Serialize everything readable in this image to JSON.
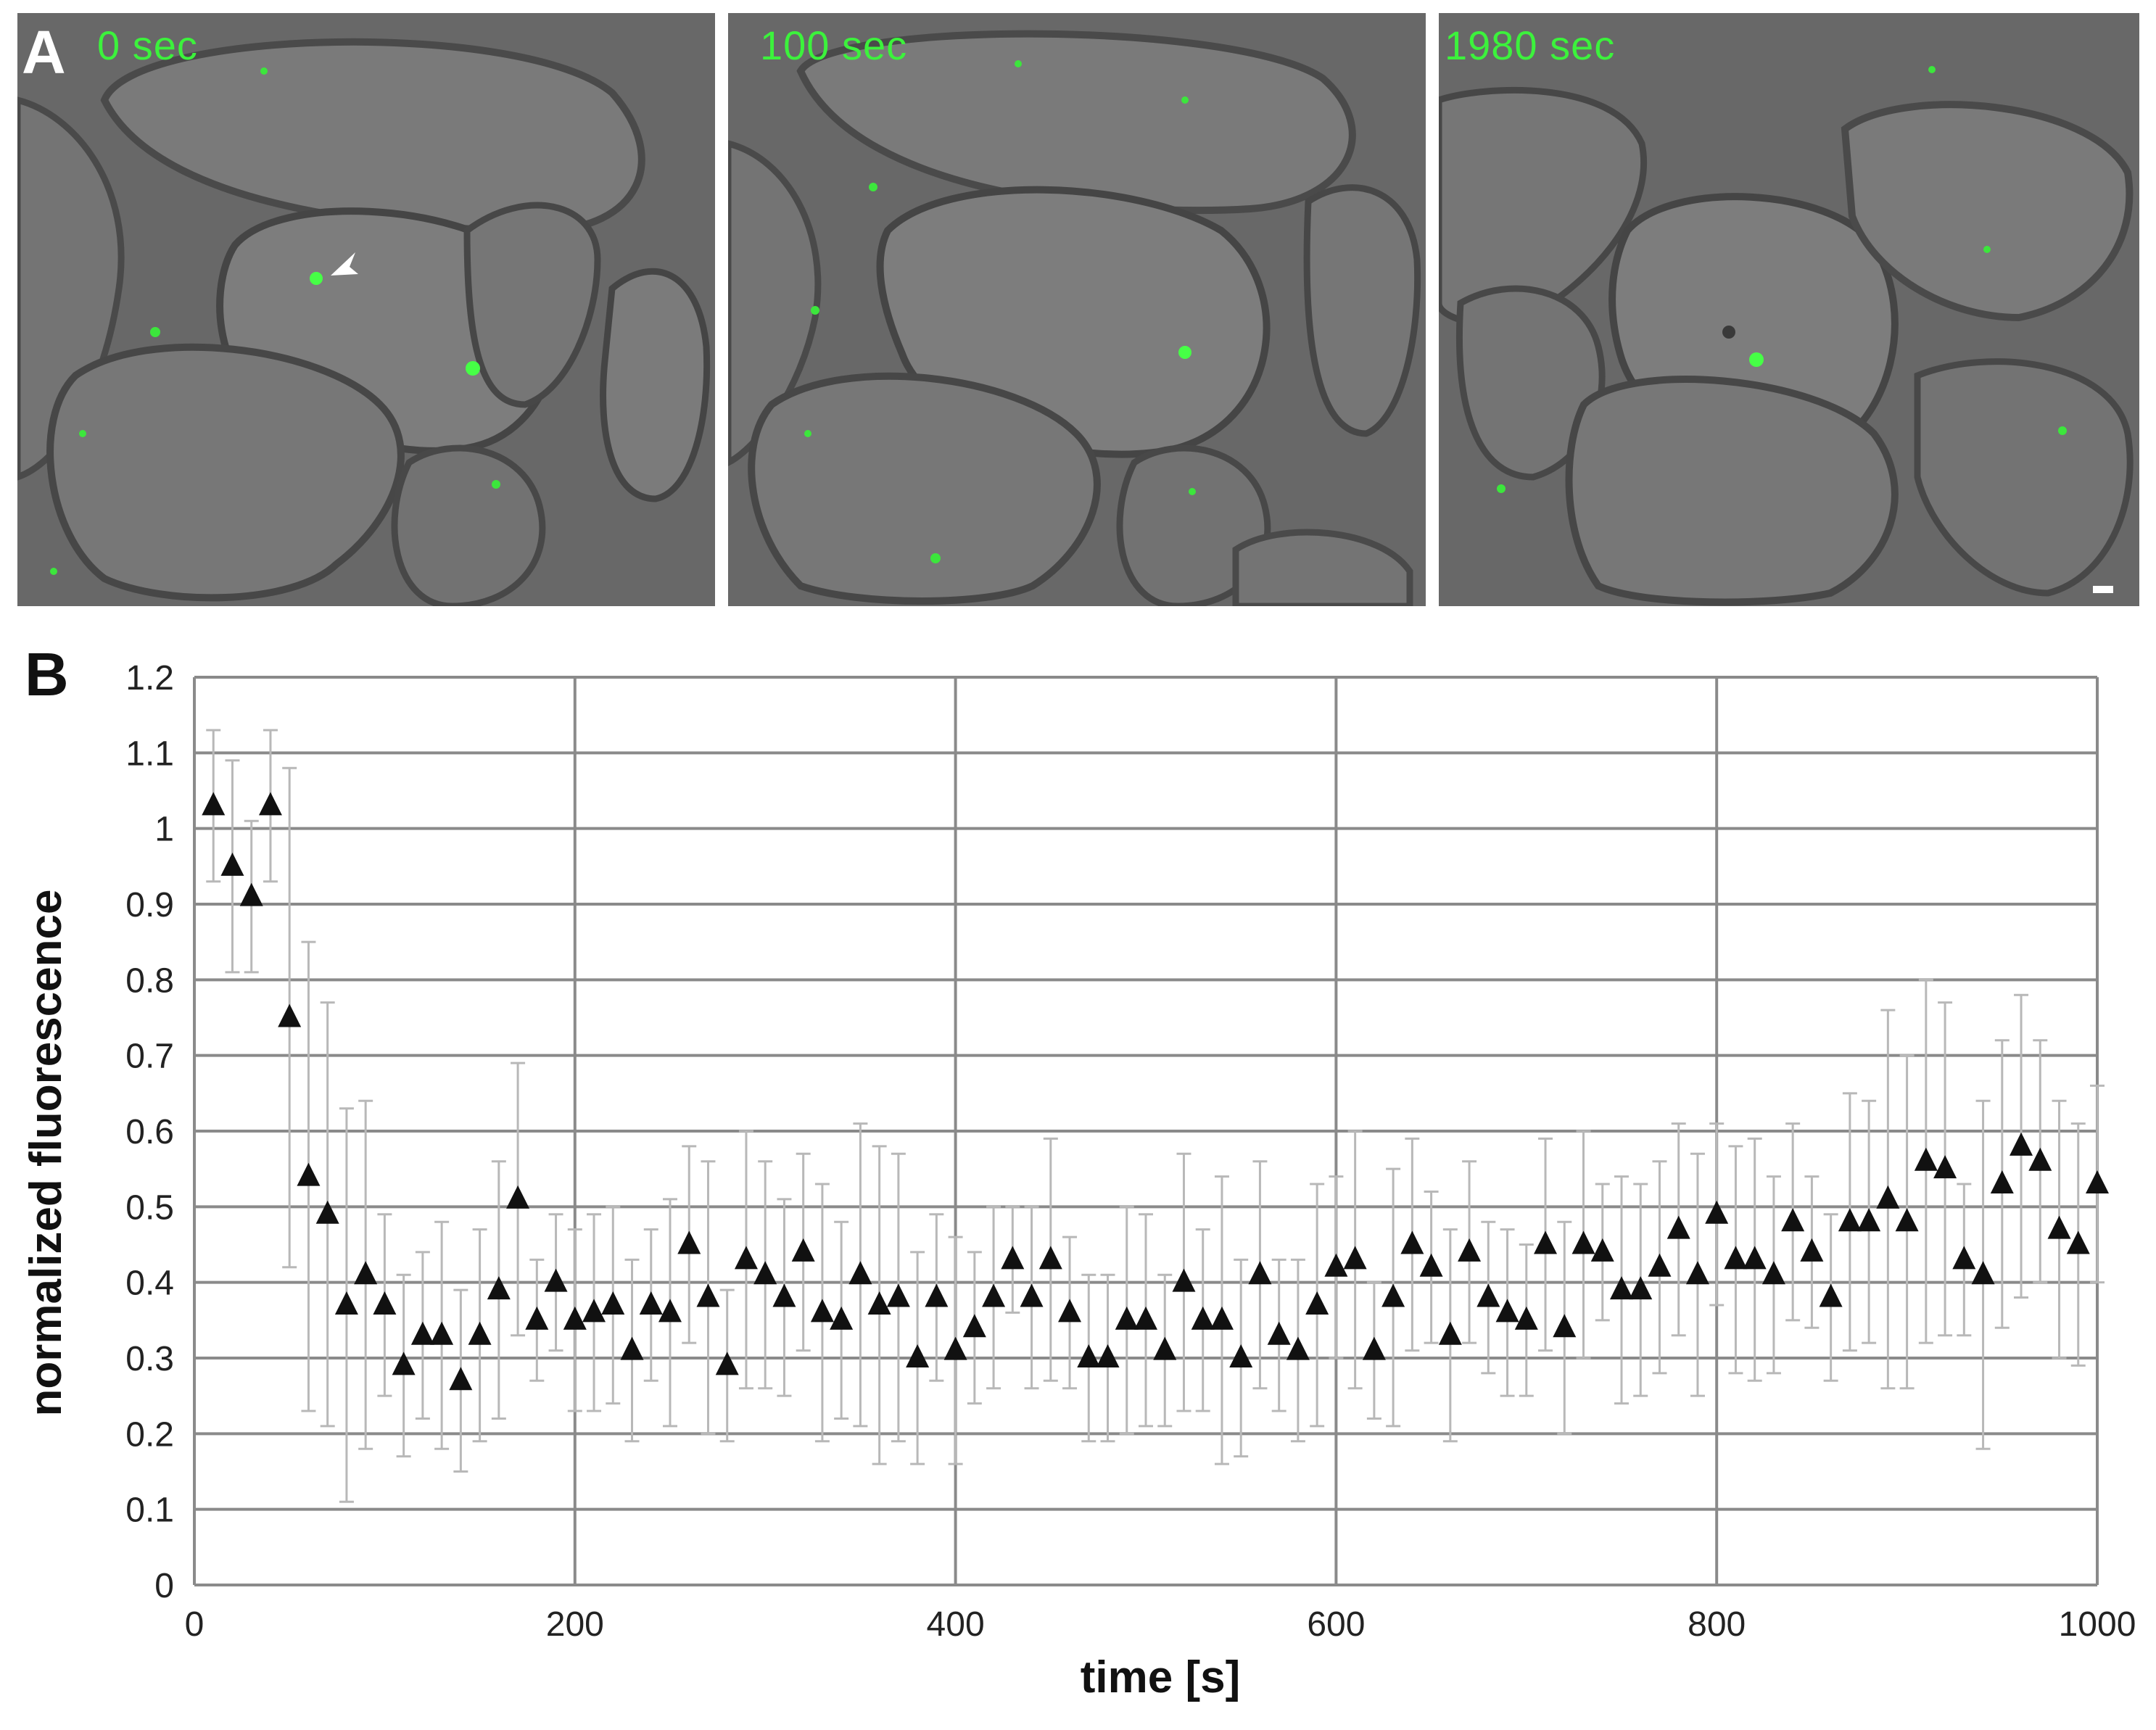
{
  "panel_a": {
    "letter": "A",
    "frames": [
      {
        "label": "0 sec"
      },
      {
        "label": "100 sec"
      },
      {
        "label": "1980 sec"
      }
    ]
  },
  "panel_b": {
    "letter": "B"
  },
  "colors": {
    "marker": "#111111",
    "error_bar": "#b8b8b8",
    "grid": "#8a8a8a",
    "fluorescent_spot": "#3cf23c",
    "micrograph_background": "#6a6a6a"
  },
  "chart_data": {
    "type": "scatter",
    "marker": "triangle",
    "xlabel": "time [s]",
    "ylabel": "normalized fluorescence",
    "xlim": [
      0,
      1000
    ],
    "ylim": [
      0,
      1.2
    ],
    "grid": true,
    "xticks": [
      0,
      200,
      400,
      600,
      800,
      1000
    ],
    "yticks": [
      0,
      0.1,
      0.2,
      0.3,
      0.4,
      0.5,
      0.6,
      0.7,
      0.8,
      0.9,
      1,
      1.1,
      1.2
    ],
    "xtick_labels": [
      "0",
      "200",
      "400",
      "600",
      "800",
      "1000"
    ],
    "ytick_labels": [
      "0",
      "0.1",
      "0.2",
      "0.3",
      "0.4",
      "0.5",
      "0.6",
      "0.7",
      "0.8",
      "0.9",
      "1",
      "1.1",
      "1.2"
    ],
    "x": [
      10,
      20,
      30,
      40,
      50,
      60,
      70,
      80,
      90,
      100,
      110,
      120,
      130,
      140,
      150,
      160,
      170,
      180,
      190,
      200,
      210,
      220,
      230,
      240,
      250,
      260,
      270,
      280,
      290,
      300,
      310,
      320,
      330,
      340,
      350,
      360,
      370,
      380,
      390,
      400,
      410,
      420,
      430,
      440,
      450,
      460,
      470,
      480,
      490,
      500,
      510,
      520,
      530,
      540,
      550,
      560,
      570,
      580,
      590,
      600,
      610,
      620,
      630,
      640,
      650,
      660,
      670,
      680,
      690,
      700,
      710,
      720,
      730,
      740,
      750,
      760,
      770,
      780,
      790,
      800,
      810,
      820,
      830,
      840,
      850,
      860,
      870,
      880,
      890,
      900,
      910,
      920,
      930,
      940,
      950,
      960,
      970,
      980,
      990,
      1000
    ],
    "y": [
      1.03,
      0.95,
      0.91,
      1.03,
      0.75,
      0.54,
      0.49,
      0.37,
      0.41,
      0.37,
      0.29,
      0.33,
      0.33,
      0.27,
      0.33,
      0.39,
      0.51,
      0.35,
      0.4,
      0.35,
      0.36,
      0.37,
      0.31,
      0.37,
      0.36,
      0.45,
      0.38,
      0.29,
      0.43,
      0.41,
      0.38,
      0.44,
      0.36,
      0.35,
      0.41,
      0.37,
      0.38,
      0.3,
      0.38,
      0.31,
      0.34,
      0.38,
      0.43,
      0.38,
      0.43,
      0.36,
      0.3,
      0.3,
      0.35,
      0.35,
      0.31,
      0.4,
      0.35,
      0.35,
      0.3,
      0.41,
      0.33,
      0.31,
      0.37,
      0.42,
      0.43,
      0.31,
      0.38,
      0.45,
      0.42,
      0.33,
      0.44,
      0.38,
      0.36,
      0.35,
      0.45,
      0.34,
      0.45,
      0.44,
      0.39,
      0.39,
      0.42,
      0.47,
      0.41,
      0.49,
      0.43,
      0.43,
      0.41,
      0.48,
      0.44,
      0.38,
      0.48,
      0.48,
      0.51,
      0.48,
      0.56,
      0.55,
      0.43,
      0.41,
      0.53,
      0.58,
      0.56,
      0.47,
      0.45,
      0.53
    ],
    "error": [
      0.1,
      0.14,
      0.1,
      0.1,
      0.33,
      0.31,
      0.28,
      0.26,
      0.23,
      0.12,
      0.12,
      0.11,
      0.15,
      0.12,
      0.14,
      0.17,
      0.18,
      0.08,
      0.09,
      0.12,
      0.13,
      0.13,
      0.12,
      0.1,
      0.15,
      0.13,
      0.18,
      0.1,
      0.17,
      0.15,
      0.13,
      0.13,
      0.17,
      0.13,
      0.2,
      0.21,
      0.19,
      0.14,
      0.11,
      0.15,
      0.1,
      0.12,
      0.07,
      0.12,
      0.16,
      0.1,
      0.11,
      0.11,
      0.15,
      0.14,
      0.1,
      0.17,
      0.12,
      0.19,
      0.13,
      0.15,
      0.1,
      0.12,
      0.16,
      0.12,
      0.17,
      0.09,
      0.17,
      0.14,
      0.1,
      0.14,
      0.12,
      0.1,
      0.11,
      0.1,
      0.14,
      0.14,
      0.15,
      0.09,
      0.15,
      0.14,
      0.14,
      0.14,
      0.16,
      0.12,
      0.15,
      0.16,
      0.13,
      0.13,
      0.1,
      0.11,
      0.17,
      0.16,
      0.25,
      0.22,
      0.24,
      0.22,
      0.1,
      0.23,
      0.19,
      0.2,
      0.16,
      0.17,
      0.16,
      0.13
    ]
  }
}
